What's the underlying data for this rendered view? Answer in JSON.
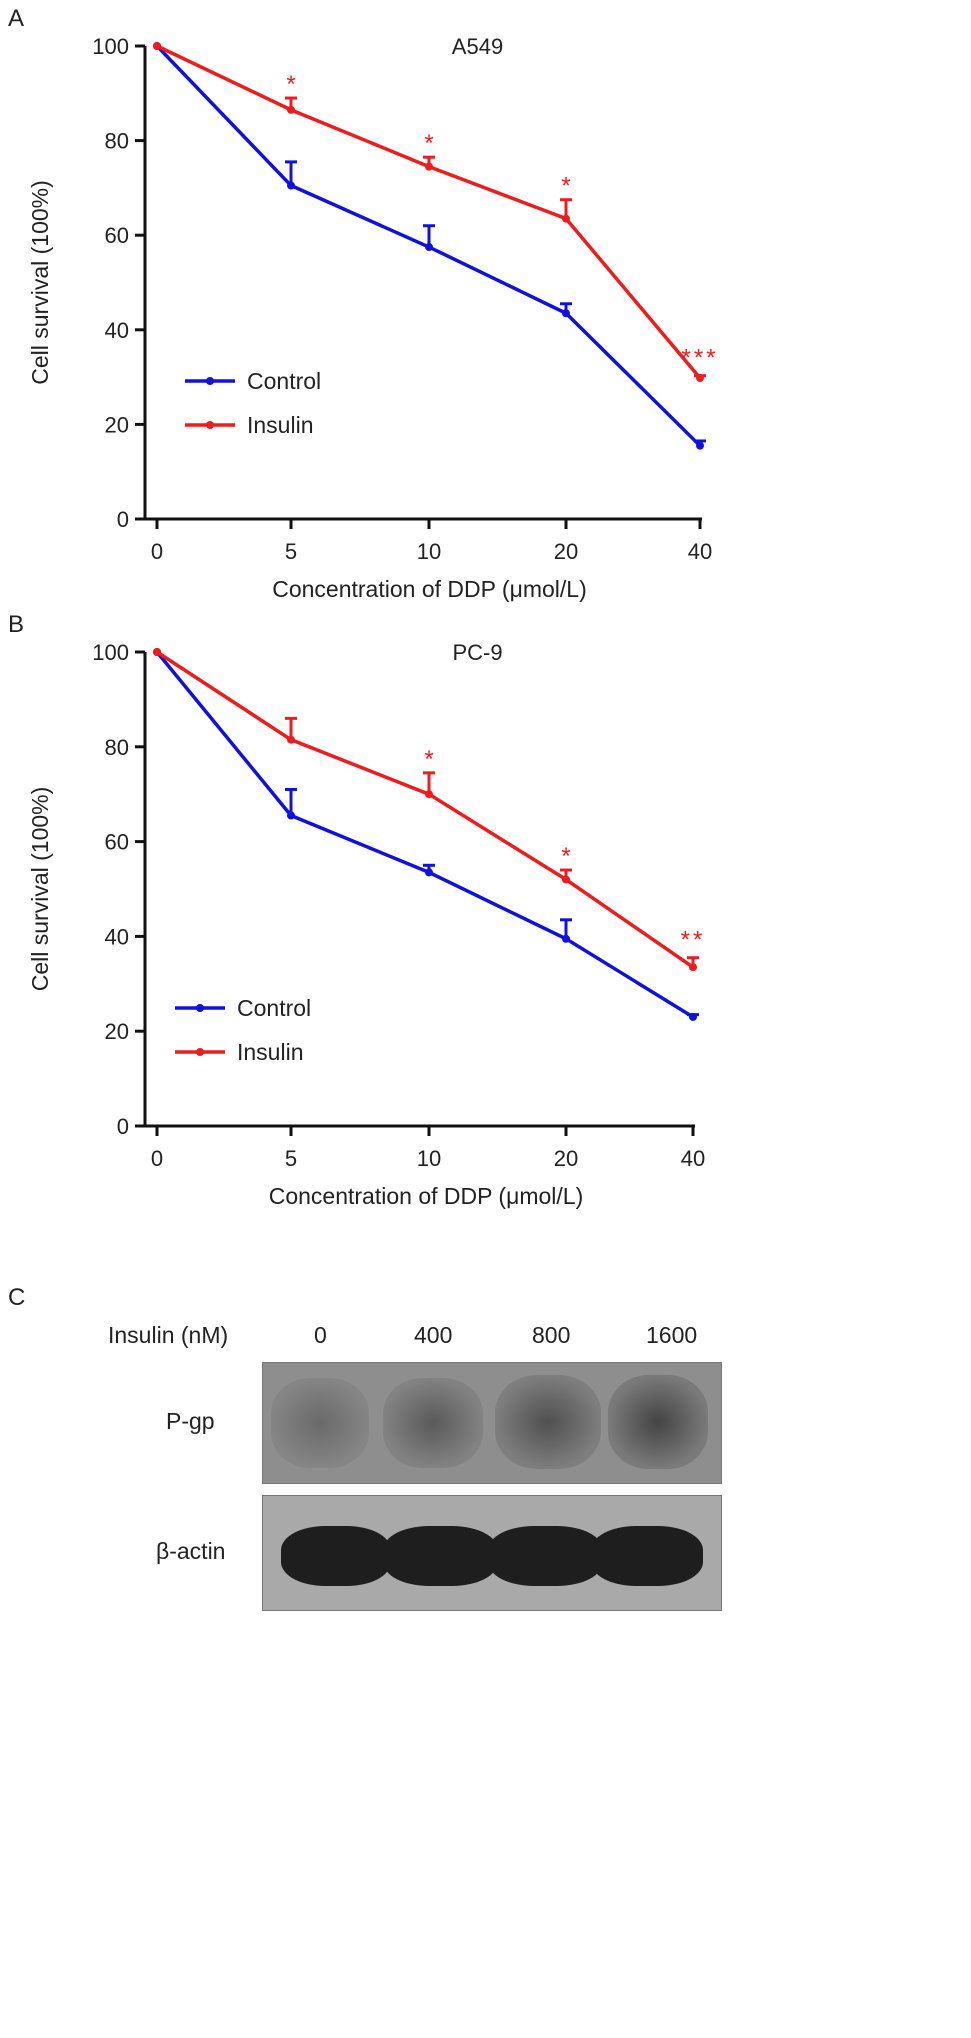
{
  "colors": {
    "control": "#1010e0",
    "insulin": "#ee1c1c",
    "axis": "#111111"
  },
  "chart_data": [
    {
      "type": "line",
      "panel": "A",
      "title": "A549",
      "xlabel": "Concentration of DDP (μmol/L)",
      "ylabel": "Cell survival (100%)",
      "categories": [
        "0",
        "5",
        "10",
        "20",
        "40"
      ],
      "yticks": [
        "0",
        "20",
        "40",
        "60",
        "80",
        "100"
      ],
      "ylim": [
        0,
        100
      ],
      "legend_position": "bottom-left",
      "series": [
        {
          "name": "Control",
          "values": [
            100,
            70.5,
            57.5,
            43.5,
            15.5
          ],
          "errors": [
            0,
            5,
            4.5,
            2,
            1
          ]
        },
        {
          "name": "Insulin",
          "values": [
            100,
            86.5,
            74.5,
            63.5,
            29.8
          ],
          "errors": [
            0,
            2.5,
            2,
            4,
            0.5
          ]
        }
      ],
      "annotations": [
        "",
        "*",
        "*",
        "*",
        "***"
      ]
    },
    {
      "type": "line",
      "panel": "B",
      "title": "PC-9",
      "xlabel": "Concentration of DDP (μmol/L)",
      "ylabel": "Cell survival (100%)",
      "categories": [
        "0",
        "5",
        "10",
        "20",
        "40"
      ],
      "yticks": [
        "0",
        "20",
        "40",
        "60",
        "80",
        "100"
      ],
      "ylim": [
        0,
        100
      ],
      "legend_position": "bottom-left",
      "series": [
        {
          "name": "Control",
          "values": [
            100,
            65.5,
            53.5,
            39.5,
            23
          ],
          "errors": [
            0,
            5.5,
            1.5,
            4,
            0.5
          ]
        },
        {
          "name": "Insulin",
          "values": [
            100,
            81.5,
            70,
            52,
            33.5
          ],
          "errors": [
            0,
            4.5,
            4.5,
            2,
            2
          ]
        }
      ],
      "annotations": [
        "",
        "",
        "*",
        "*",
        "**"
      ]
    }
  ],
  "panel_c": {
    "label": "C",
    "header": "Insulin (nM)",
    "doses": [
      "0",
      "400",
      "800",
      "1600"
    ],
    "rows": [
      "P-gp",
      "β-actin"
    ]
  }
}
